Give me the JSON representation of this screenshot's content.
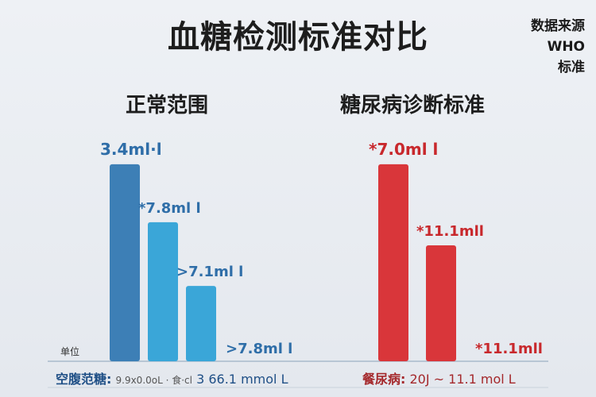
{
  "header": {
    "title": "血糖检测标准对比",
    "source_lines": [
      "数据来源",
      "WHO",
      "标准"
    ]
  },
  "unit_label": "单位",
  "footer": {
    "left_label": "空腹范糖:",
    "left_note": "9.9x0.0oL · 食·cl",
    "left_value": "3  66.1  mmol L",
    "right_label": "餐尿病:",
    "right_value": "20J  ~  11.1 mol L"
  },
  "colors": {
    "normal_dark": "#3d7fb6",
    "normal_light": "#3aa6d8",
    "diabetes": "#d9363a",
    "baseline": "#b8c6d4"
  },
  "chart_data": [
    {
      "type": "bar",
      "title": "正常范围",
      "data_labels": [
        "3.4ml·l",
        "*7.8ml l",
        ">7.1ml l",
        ">7.8ml l"
      ],
      "values": [
        3.4,
        2.4,
        1.3,
        0
      ],
      "colors": [
        "#3d7fb6",
        "#3aa6d8",
        "#3aa6d8",
        "#3aa6d8"
      ],
      "ylim": [
        0,
        3.7
      ]
    },
    {
      "type": "bar",
      "title": "糖尿病诊断标准",
      "data_labels": [
        "*7.0ml l",
        "*11.1mll",
        "*11.1mll"
      ],
      "values": [
        3.4,
        2.0,
        0
      ],
      "colors": [
        "#d9363a",
        "#d9363a",
        "#d9363a"
      ],
      "ylim": [
        0,
        3.7
      ]
    }
  ]
}
